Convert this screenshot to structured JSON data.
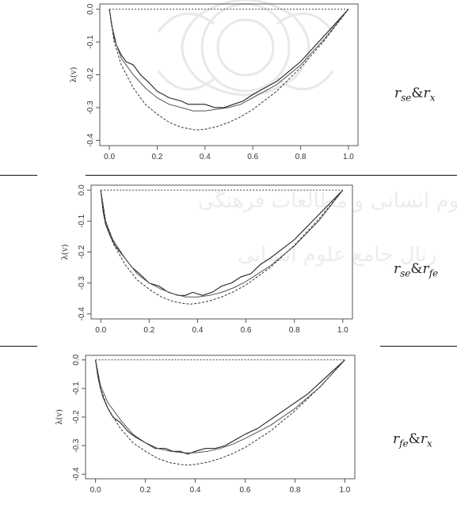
{
  "panels": [
    {
      "label": {
        "a": "r",
        "a_sub": "se",
        "amp": "&",
        "b": "r",
        "b_sub": "x"
      },
      "chart_data": {
        "type": "line",
        "ylabel": "λ(v)",
        "xlim": [
          0,
          1
        ],
        "ylim": [
          -0.4,
          0
        ],
        "xticks": [
          "0.0",
          "0.2",
          "0.4",
          "0.6",
          "0.8",
          "1.0"
        ],
        "yticks": [
          "0.0",
          "-0.1",
          "-0.2",
          "-0.3",
          "-0.4"
        ],
        "series": [
          {
            "style": "solid-noisy",
            "x": [
              0,
              0.01,
              0.02,
              0.03,
              0.05,
              0.07,
              0.1,
              0.13,
              0.16,
              0.2,
              0.25,
              0.3,
              0.33,
              0.36,
              0.4,
              0.44,
              0.48,
              0.52,
              0.56,
              0.6,
              0.65,
              0.7,
              0.75,
              0.8,
              0.85,
              0.9,
              0.95,
              1.0
            ],
            "y": [
              0,
              -0.05,
              -0.08,
              -0.11,
              -0.14,
              -0.16,
              -0.17,
              -0.2,
              -0.22,
              -0.25,
              -0.27,
              -0.28,
              -0.29,
              -0.29,
              -0.29,
              -0.3,
              -0.3,
              -0.29,
              -0.28,
              -0.26,
              -0.24,
              -0.22,
              -0.19,
              -0.16,
              -0.12,
              -0.08,
              -0.04,
              0
            ]
          },
          {
            "style": "solid-smooth",
            "x": [
              0,
              0.02,
              0.05,
              0.1,
              0.15,
              0.2,
              0.25,
              0.3,
              0.35,
              0.4,
              0.45,
              0.5,
              0.55,
              0.6,
              0.7,
              0.8,
              0.9,
              1.0
            ],
            "y": [
              0,
              -0.09,
              -0.15,
              -0.2,
              -0.24,
              -0.27,
              -0.29,
              -0.3,
              -0.31,
              -0.31,
              -0.305,
              -0.3,
              -0.29,
              -0.27,
              -0.23,
              -0.17,
              -0.09,
              0
            ]
          },
          {
            "style": "dashed",
            "x": [
              0,
              0.02,
              0.05,
              0.1,
              0.15,
              0.2,
              0.25,
              0.3,
              0.35,
              0.37,
              0.4,
              0.45,
              0.5,
              0.55,
              0.6,
              0.7,
              0.8,
              0.9,
              1.0
            ],
            "y": [
              0,
              -0.1,
              -0.17,
              -0.24,
              -0.29,
              -0.32,
              -0.345,
              -0.36,
              -0.367,
              -0.368,
              -0.366,
              -0.358,
              -0.345,
              -0.328,
              -0.306,
              -0.25,
              -0.178,
              -0.095,
              0
            ]
          },
          {
            "style": "dotted-flat",
            "x": [
              0,
              1
            ],
            "y": [
              0,
              0
            ]
          }
        ]
      }
    },
    {
      "label": {
        "a": "r",
        "a_sub": "se",
        "amp": "&",
        "b": "r",
        "b_sub": "fe"
      },
      "chart_data": {
        "type": "line",
        "ylabel": "λ(v)",
        "xlim": [
          0,
          1
        ],
        "ylim": [
          -0.4,
          0
        ],
        "xticks": [
          "0.0",
          "0.2",
          "0.4",
          "0.6",
          "0.8",
          "1.0"
        ],
        "yticks": [
          "0.0",
          "-0.1",
          "-0.2",
          "-0.3",
          "-0.4"
        ],
        "series": [
          {
            "style": "solid-noisy",
            "x": [
              0,
              0.01,
              0.02,
              0.04,
              0.06,
              0.08,
              0.1,
              0.13,
              0.16,
              0.2,
              0.24,
              0.28,
              0.32,
              0.35,
              0.38,
              0.42,
              0.46,
              0.5,
              0.54,
              0.58,
              0.62,
              0.66,
              0.7,
              0.75,
              0.8,
              0.85,
              0.9,
              0.95,
              1.0
            ],
            "y": [
              0,
              -0.07,
              -0.11,
              -0.15,
              -0.18,
              -0.2,
              -0.22,
              -0.25,
              -0.27,
              -0.3,
              -0.31,
              -0.33,
              -0.34,
              -0.34,
              -0.33,
              -0.34,
              -0.33,
              -0.31,
              -0.3,
              -0.28,
              -0.27,
              -0.24,
              -0.22,
              -0.19,
              -0.16,
              -0.12,
              -0.08,
              -0.04,
              0
            ]
          },
          {
            "style": "solid-smooth",
            "x": [
              0,
              0.02,
              0.05,
              0.1,
              0.15,
              0.2,
              0.25,
              0.3,
              0.35,
              0.4,
              0.45,
              0.5,
              0.55,
              0.6,
              0.7,
              0.8,
              0.9,
              1.0
            ],
            "y": [
              0,
              -0.1,
              -0.16,
              -0.22,
              -0.27,
              -0.3,
              -0.32,
              -0.335,
              -0.345,
              -0.345,
              -0.34,
              -0.33,
              -0.315,
              -0.295,
              -0.245,
              -0.18,
              -0.1,
              0
            ]
          },
          {
            "style": "dashed",
            "x": [
              0,
              0.02,
              0.05,
              0.1,
              0.15,
              0.2,
              0.25,
              0.3,
              0.35,
              0.37,
              0.4,
              0.45,
              0.5,
              0.55,
              0.6,
              0.7,
              0.8,
              0.9,
              1.0
            ],
            "y": [
              0,
              -0.1,
              -0.17,
              -0.24,
              -0.29,
              -0.32,
              -0.345,
              -0.36,
              -0.367,
              -0.368,
              -0.366,
              -0.358,
              -0.345,
              -0.328,
              -0.306,
              -0.25,
              -0.178,
              -0.095,
              0
            ]
          },
          {
            "style": "dotted-flat",
            "x": [
              0,
              1
            ],
            "y": [
              0,
              0
            ]
          }
        ]
      }
    },
    {
      "label": {
        "a": "r",
        "a_sub": "fe",
        "amp": "&",
        "b": "r",
        "b_sub": "x"
      },
      "chart_data": {
        "type": "line",
        "ylabel": "λ(v)",
        "xlim": [
          0,
          1
        ],
        "ylim": [
          -0.4,
          0
        ],
        "xticks": [
          "0.0",
          "0.2",
          "0.4",
          "0.6",
          "0.8",
          "1.0"
        ],
        "yticks": [
          "0.0",
          "-0.1",
          "-0.2",
          "-0.3",
          "-0.4"
        ],
        "series": [
          {
            "style": "solid-noisy",
            "x": [
              0,
              0.01,
              0.02,
              0.03,
              0.05,
              0.07,
              0.1,
              0.13,
              0.16,
              0.2,
              0.24,
              0.28,
              0.31,
              0.34,
              0.37,
              0.4,
              0.44,
              0.48,
              0.52,
              0.56,
              0.6,
              0.65,
              0.7,
              0.75,
              0.8,
              0.85,
              0.9,
              0.95,
              1.0
            ],
            "y": [
              0,
              -0.06,
              -0.1,
              -0.13,
              -0.17,
              -0.2,
              -0.22,
              -0.25,
              -0.27,
              -0.29,
              -0.31,
              -0.31,
              -0.32,
              -0.32,
              -0.33,
              -0.32,
              -0.31,
              -0.31,
              -0.3,
              -0.28,
              -0.26,
              -0.24,
              -0.21,
              -0.18,
              -0.15,
              -0.12,
              -0.08,
              -0.04,
              0
            ]
          },
          {
            "style": "solid-smooth",
            "x": [
              0,
              0.02,
              0.05,
              0.1,
              0.15,
              0.2,
              0.25,
              0.3,
              0.35,
              0.4,
              0.45,
              0.5,
              0.55,
              0.6,
              0.7,
              0.8,
              0.9,
              1.0
            ],
            "y": [
              0,
              -0.09,
              -0.15,
              -0.21,
              -0.26,
              -0.29,
              -0.31,
              -0.32,
              -0.325,
              -0.325,
              -0.32,
              -0.31,
              -0.295,
              -0.275,
              -0.23,
              -0.17,
              -0.095,
              0
            ]
          },
          {
            "style": "dashed",
            "x": [
              0,
              0.02,
              0.05,
              0.1,
              0.15,
              0.2,
              0.25,
              0.3,
              0.35,
              0.37,
              0.4,
              0.45,
              0.5,
              0.55,
              0.6,
              0.7,
              0.8,
              0.9,
              1.0
            ],
            "y": [
              0,
              -0.1,
              -0.17,
              -0.24,
              -0.29,
              -0.32,
              -0.345,
              -0.36,
              -0.367,
              -0.368,
              -0.366,
              -0.358,
              -0.345,
              -0.328,
              -0.306,
              -0.25,
              -0.178,
              -0.095,
              0
            ]
          },
          {
            "style": "dotted-flat",
            "x": [
              0,
              1
            ],
            "y": [
              0,
              0
            ]
          }
        ]
      }
    }
  ]
}
